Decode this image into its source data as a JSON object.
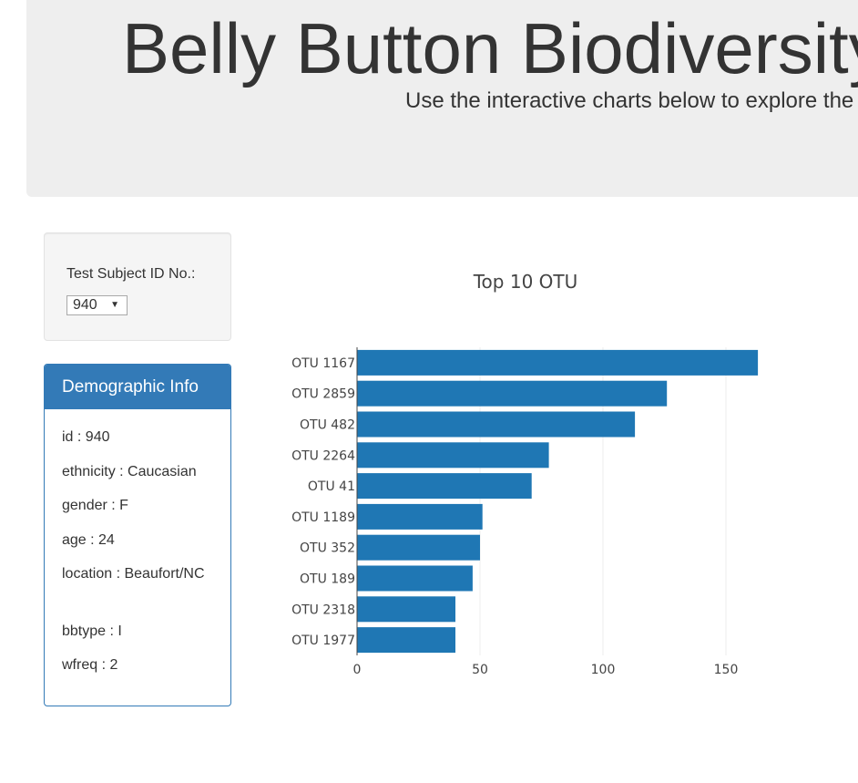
{
  "header": {
    "title": "Belly Button Biodiversity Dashboard",
    "subtitle": "Use the interactive charts below to explore the dataset"
  },
  "selector": {
    "label": "Test Subject ID No.:",
    "selected": "940"
  },
  "demographics": {
    "heading": "Demographic Info",
    "items": [
      "id : 940",
      "ethnicity : Caucasian",
      "gender : F",
      "age : 24",
      "location : Beaufort/NC",
      "bbtype : I",
      "wfreq : 2"
    ]
  },
  "colors": {
    "bar": "#1f77b4",
    "panel": "#337ab7",
    "jumbotron": "#eeeeee"
  },
  "chart_data": {
    "type": "bar",
    "orientation": "horizontal",
    "title": "Top 10 OTU",
    "xlabel": "",
    "ylabel": "",
    "categories": [
      "OTU 1167",
      "OTU 2859",
      "OTU 482",
      "OTU 2264",
      "OTU 41",
      "OTU 1189",
      "OTU 352",
      "OTU 189",
      "OTU 2318",
      "OTU 1977"
    ],
    "values": [
      163,
      126,
      113,
      78,
      71,
      51,
      50,
      47,
      40,
      40
    ],
    "xlim": [
      0,
      180
    ],
    "xticks": [
      0,
      50,
      100,
      150
    ],
    "grid": true
  }
}
